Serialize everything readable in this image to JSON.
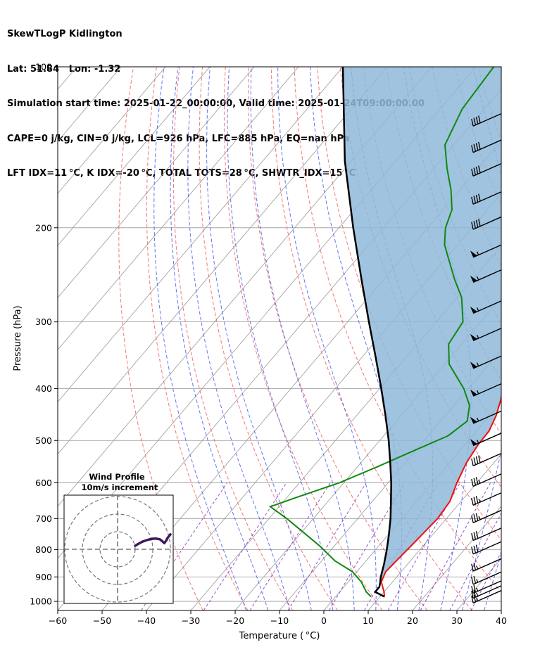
{
  "header": {
    "line1": "SkewTLogP Kidlington",
    "line2": "Lat: 51.84   Lon: -1.32",
    "line3": "Simulation start time: 2025-01-22_00:00:00, Valid time: 2025-01-24T09:00:00.00",
    "line4": "CAPE=0 j/kg, CIN=0 j/kg, LCL=926 hPa, LFC=885 hPa, EQ=nan hPa",
    "line5": "LFT IDX=11 °C, K IDX=-20 °C, TOTAL TOTS=28 °C, SHWTR_IDX=15 °C"
  },
  "colors": {
    "temperature": "#ee1111",
    "dewpoint": "#118811",
    "parcel": "#000000",
    "shade": "#8fb9d9",
    "dry_adiabat": "#f06060",
    "moist_adiabat": "#4a5cf0",
    "mixing_ratio": "#9040c0",
    "isotherm": "#999999",
    "hodograph": "#3d1a5c"
  },
  "chart_data": {
    "type": "skewt",
    "xlabel": "Temperature ( °C)",
    "ylabel": "Pressure (hPa)",
    "xlim": [
      -60,
      40
    ],
    "ylim_hpa": [
      1040,
      100
    ],
    "x_ticks": [
      "−60",
      "−50",
      "−40",
      "−30",
      "−20",
      "−10",
      "0",
      "10",
      "20",
      "30",
      "40"
    ],
    "x_tick_values": [
      -60,
      -50,
      -40,
      -30,
      -20,
      -10,
      0,
      10,
      20,
      30,
      40
    ],
    "y_ticks": [
      "100",
      "200",
      "300",
      "400",
      "500",
      "600",
      "700",
      "800",
      "900",
      "1000"
    ],
    "y_tick_values": [
      100,
      200,
      300,
      400,
      500,
      600,
      700,
      800,
      900,
      1000
    ],
    "y_scale": "log",
    "grid": true,
    "temperature": [
      [
        980,
        11.0
      ],
      [
        960,
        10.0
      ],
      [
        920,
        7.5
      ],
      [
        880,
        6.5
      ],
      [
        820,
        7.0
      ],
      [
        760,
        7.5
      ],
      [
        700,
        8.0
      ],
      [
        650,
        7.5
      ],
      [
        600,
        5.5
      ],
      [
        550,
        3.8
      ],
      [
        510,
        3.0
      ],
      [
        480,
        2.8
      ],
      [
        450,
        1.5
      ],
      [
        420,
        -0.5
      ],
      [
        380,
        -4.0
      ],
      [
        340,
        -8.0
      ],
      [
        310,
        -11.0
      ],
      [
        280,
        -13.0
      ],
      [
        260,
        -16.0
      ],
      [
        230,
        -21.0
      ],
      [
        215,
        -23.5
      ],
      [
        200,
        -24.0
      ],
      [
        185,
        -24.5
      ],
      [
        170,
        -25.0
      ],
      [
        155,
        -24.5
      ],
      [
        140,
        -24.0
      ],
      [
        125,
        -24.0
      ],
      [
        110,
        -24.5
      ],
      [
        100,
        -25.0
      ]
    ],
    "dewpoint": [
      [
        980,
        8.0
      ],
      [
        960,
        6.0
      ],
      [
        920,
        3.0
      ],
      [
        880,
        -1.0
      ],
      [
        840,
        -7.0
      ],
      [
        790,
        -13.0
      ],
      [
        740,
        -20.0
      ],
      [
        700,
        -26.0
      ],
      [
        665,
        -32.0
      ],
      [
        640,
        -28.0
      ],
      [
        600,
        -21.0
      ],
      [
        560,
        -15.5
      ],
      [
        520,
        -10.0
      ],
      [
        490,
        -5.5
      ],
      [
        460,
        -4.0
      ],
      [
        430,
        -6.5
      ],
      [
        400,
        -11.0
      ],
      [
        360,
        -19.0
      ],
      [
        330,
        -23.0
      ],
      [
        300,
        -24.0
      ],
      [
        270,
        -29.0
      ],
      [
        250,
        -34.0
      ],
      [
        230,
        -39.0
      ],
      [
        215,
        -43.0
      ],
      [
        200,
        -46.0
      ],
      [
        185,
        -48.0
      ],
      [
        170,
        -52.0
      ],
      [
        155,
        -57.0
      ],
      [
        140,
        -62.0
      ],
      [
        120,
        -65.0
      ],
      [
        100,
        -66.0
      ]
    ],
    "parcel": [
      [
        980,
        11.0
      ],
      [
        960,
        8.0
      ],
      [
        940,
        8.0
      ],
      [
        926,
        7.5
      ],
      [
        900,
        6.4
      ],
      [
        850,
        4.6
      ],
      [
        800,
        2.5
      ],
      [
        750,
        0.1
      ],
      [
        700,
        -2.6
      ],
      [
        650,
        -5.8
      ],
      [
        600,
        -9.3
      ],
      [
        550,
        -13.4
      ],
      [
        500,
        -18.0
      ],
      [
        450,
        -23.4
      ],
      [
        400,
        -29.6
      ],
      [
        350,
        -36.8
      ],
      [
        300,
        -45.2
      ],
      [
        250,
        -55.0
      ],
      [
        200,
        -66.8
      ],
      [
        150,
        -81.5
      ],
      [
        100,
        -100.0
      ]
    ],
    "wind_barbs": [
      {
        "p": 975,
        "speed_kt": 25,
        "dir_deg": 240
      },
      {
        "p": 955,
        "speed_kt": 25,
        "dir_deg": 240
      },
      {
        "p": 935,
        "speed_kt": 25,
        "dir_deg": 245
      },
      {
        "p": 900,
        "speed_kt": 25,
        "dir_deg": 250
      },
      {
        "p": 850,
        "speed_kt": 25,
        "dir_deg": 250
      },
      {
        "p": 790,
        "speed_kt": 30,
        "dir_deg": 250
      },
      {
        "p": 745,
        "speed_kt": 30,
        "dir_deg": 250
      },
      {
        "p": 690,
        "speed_kt": 35,
        "dir_deg": 245
      },
      {
        "p": 640,
        "speed_kt": 35,
        "dir_deg": 245
      },
      {
        "p": 590,
        "speed_kt": 35,
        "dir_deg": 245
      },
      {
        "p": 540,
        "speed_kt": 40,
        "dir_deg": 245
      },
      {
        "p": 495,
        "speed_kt": 55,
        "dir_deg": 245
      },
      {
        "p": 450,
        "speed_kt": 55,
        "dir_deg": 245
      },
      {
        "p": 400,
        "speed_kt": 55,
        "dir_deg": 245
      },
      {
        "p": 355,
        "speed_kt": 55,
        "dir_deg": 245
      },
      {
        "p": 315,
        "speed_kt": 55,
        "dir_deg": 245
      },
      {
        "p": 280,
        "speed_kt": 55,
        "dir_deg": 245
      },
      {
        "p": 245,
        "speed_kt": 55,
        "dir_deg": 245
      },
      {
        "p": 220,
        "speed_kt": 55,
        "dir_deg": 245
      },
      {
        "p": 195,
        "speed_kt": 40,
        "dir_deg": 245
      },
      {
        "p": 175,
        "speed_kt": 40,
        "dir_deg": 245
      },
      {
        "p": 155,
        "speed_kt": 40,
        "dir_deg": 245
      },
      {
        "p": 140,
        "speed_kt": 40,
        "dir_deg": 245
      },
      {
        "p": 125,
        "speed_kt": 40,
        "dir_deg": 245
      }
    ],
    "hodograph": {
      "title": "Wind Profile",
      "subtitle": "10m/s increment",
      "ring_step_ms": 10,
      "rings": 3,
      "points_uv": [
        [
          10,
          2
        ],
        [
          12,
          3.2
        ],
        [
          14,
          4.3
        ],
        [
          16,
          5.0
        ],
        [
          18,
          5.6
        ],
        [
          20,
          6.0
        ],
        [
          22,
          6.1
        ],
        [
          24,
          5.7
        ],
        [
          25.5,
          4.5
        ],
        [
          26.5,
          3.5
        ],
        [
          27.5,
          4.8
        ],
        [
          28.5,
          6.6
        ],
        [
          30,
          8.5
        ]
      ]
    }
  }
}
